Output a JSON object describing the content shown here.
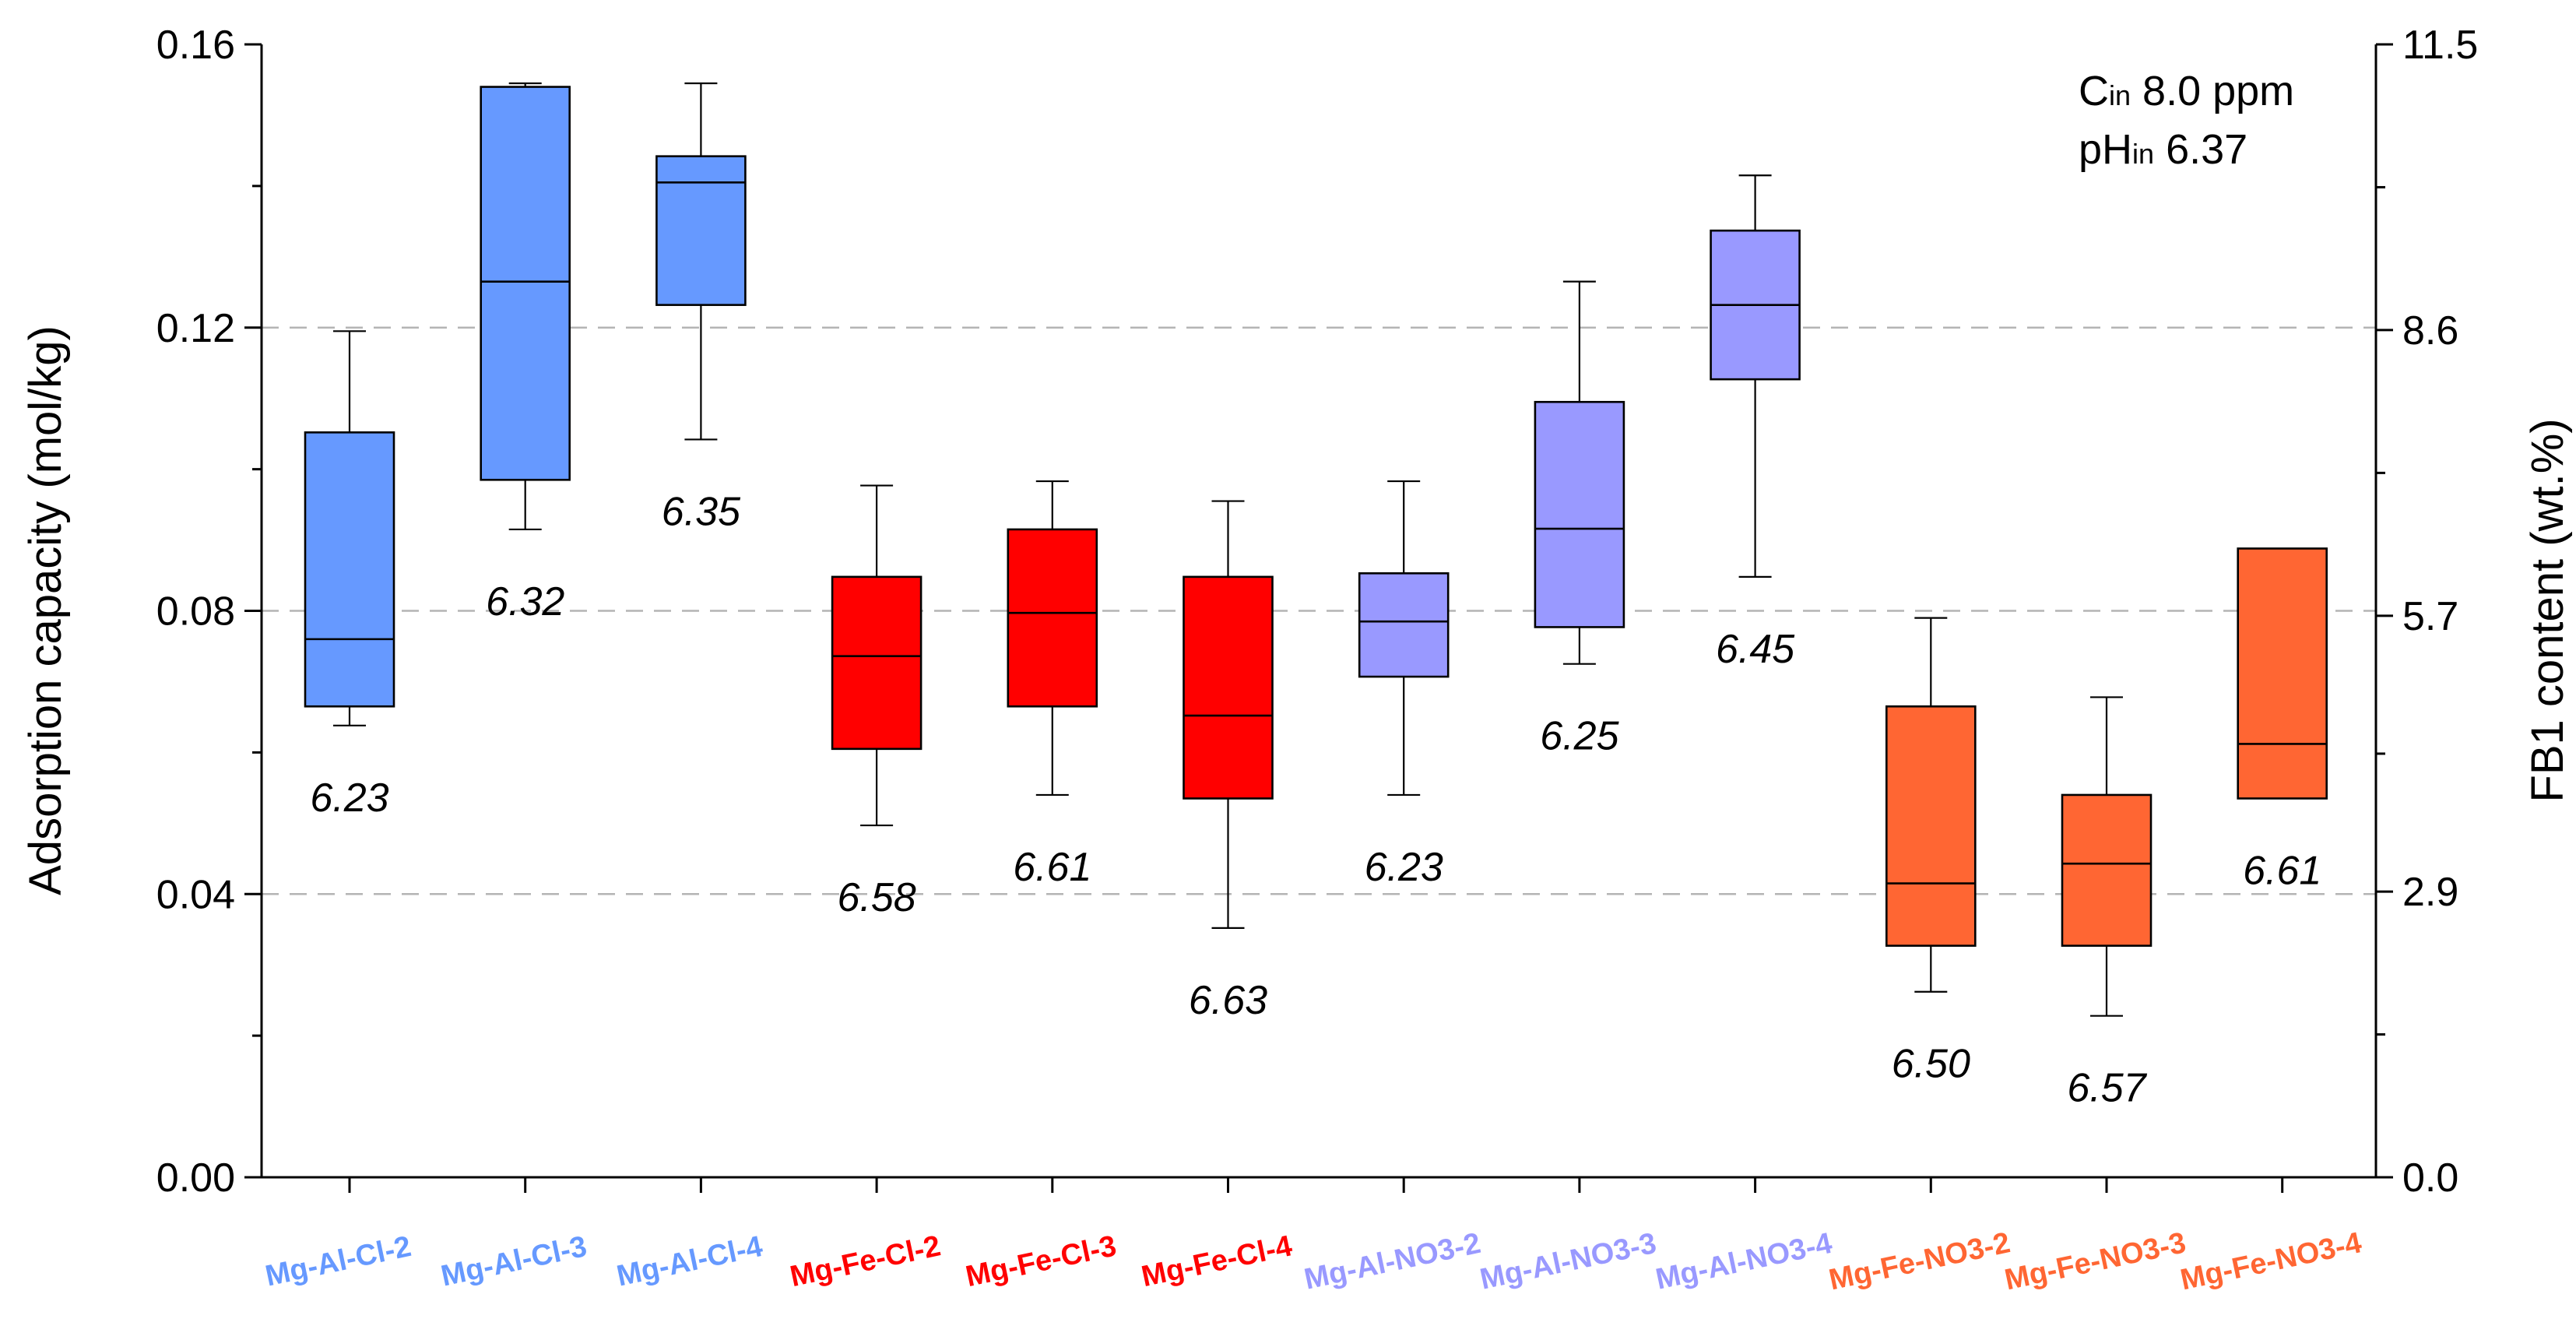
{
  "chart_data": {
    "type": "box",
    "categories": [
      "Mg-Al-Cl-2",
      "Mg-Al-Cl-3",
      "Mg-Al-Cl-4",
      "Mg-Fe-Cl-2",
      "Mg-Fe-Cl-3",
      "Mg-Fe-Cl-4",
      "Mg-Al-NO3-2",
      "Mg-Al-NO3-3",
      "Mg-Al-NO3-4",
      "Mg-Fe-NO3-2",
      "Mg-Fe-NO3-3",
      "Mg-Fe-NO3-4"
    ],
    "category_colors": [
      "#6699FF",
      "#6699FF",
      "#6699FF",
      "#FF0000",
      "#FF0000",
      "#FF0000",
      "#9999FF",
      "#9999FF",
      "#9999FF",
      "#FF6633",
      "#FF6633",
      "#FF6633"
    ],
    "boxes": [
      {
        "whisker_low": 0.0638,
        "q1": 0.0665,
        "median": 0.076,
        "q3": 0.1052,
        "whisker_high": 0.1195,
        "ph_label": "6.23"
      },
      {
        "whisker_low": 0.0915,
        "q1": 0.0985,
        "median": 0.1265,
        "q3": 0.154,
        "whisker_high": 0.1545,
        "ph_label": "6.32"
      },
      {
        "whisker_low": 0.1042,
        "q1": 0.1232,
        "median": 0.1405,
        "q3": 0.1442,
        "whisker_high": 0.1545,
        "ph_label": "6.35"
      },
      {
        "whisker_low": 0.0497,
        "q1": 0.0605,
        "median": 0.0736,
        "q3": 0.0848,
        "whisker_high": 0.0977,
        "ph_label": "6.58"
      },
      {
        "whisker_low": 0.054,
        "q1": 0.0665,
        "median": 0.0797,
        "q3": 0.0915,
        "whisker_high": 0.0983,
        "ph_label": "6.61"
      },
      {
        "whisker_low": 0.0352,
        "q1": 0.0535,
        "median": 0.0652,
        "q3": 0.0848,
        "whisker_high": 0.0955,
        "ph_label": "6.63"
      },
      {
        "whisker_low": 0.054,
        "q1": 0.0707,
        "median": 0.0785,
        "q3": 0.0853,
        "whisker_high": 0.0983,
        "ph_label": "6.23"
      },
      {
        "whisker_low": 0.0725,
        "q1": 0.0777,
        "median": 0.0916,
        "q3": 0.1095,
        "whisker_high": 0.1265,
        "ph_label": "6.25"
      },
      {
        "whisker_low": 0.0848,
        "q1": 0.1127,
        "median": 0.1232,
        "q3": 0.1337,
        "whisker_high": 0.1415,
        "ph_label": "6.45"
      },
      {
        "whisker_low": 0.0262,
        "q1": 0.0327,
        "median": 0.0415,
        "q3": 0.0665,
        "whisker_high": 0.079,
        "ph_label": "6.50"
      },
      {
        "whisker_low": 0.0228,
        "q1": 0.0327,
        "median": 0.0443,
        "q3": 0.054,
        "whisker_high": 0.0678,
        "ph_label": "6.57"
      },
      {
        "whisker_low": null,
        "q1": 0.0535,
        "median": 0.0612,
        "q3": 0.0888,
        "whisker_high": null,
        "ph_label": "6.61"
      }
    ],
    "ylabel": "Adsorption capacity (mol/kg)",
    "ylim": [
      0,
      0.16
    ],
    "yticks": [
      "0.00",
      "0.04",
      "0.08",
      "0.12",
      "0.16"
    ],
    "y2label": "FB1 content (wt.%)",
    "y2lim": [
      0,
      11.5
    ],
    "y2ticks": [
      "0.0",
      "2.9",
      "5.7",
      "8.6",
      "11.5"
    ],
    "grid": "dashed horizontal at 0.04, 0.08, 0.12",
    "annotation": {
      "line1_sym": "C",
      "line1_sub": "in",
      "line1_rest": " 8.0 ppm",
      "line2_sym": "pH",
      "line2_sub": "in",
      "line2_rest": " 6.37"
    }
  }
}
